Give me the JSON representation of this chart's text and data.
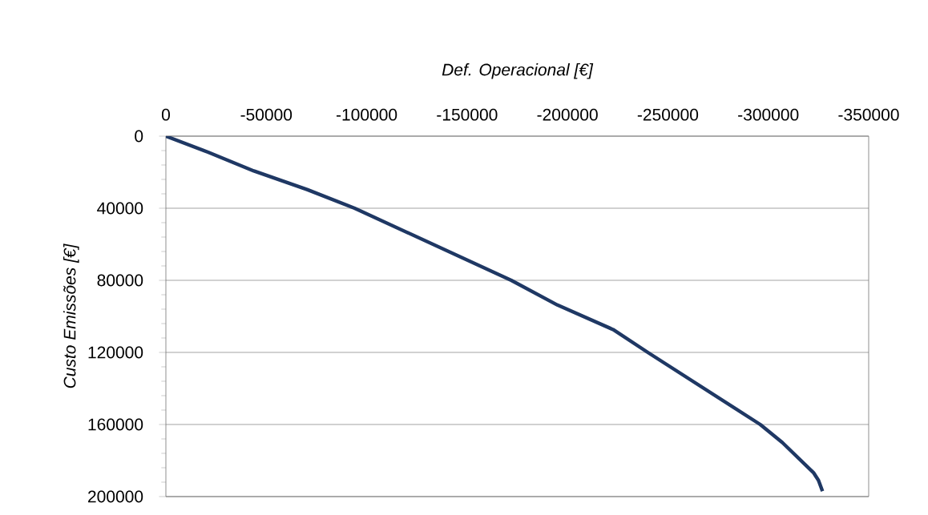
{
  "chart_data": {
    "type": "line",
    "xlabel": "Def. Operacional [€]",
    "ylabel": "Custo Emissões [€]",
    "x": [
      0,
      -21000,
      -43800,
      -70300,
      -94000,
      -172000,
      -195000,
      -222700,
      -240000,
      -296000,
      -307000,
      -322500,
      -325000,
      -327000
    ],
    "values": [
      0,
      8900,
      19300,
      29600,
      40000,
      80000,
      93700,
      107300,
      120000,
      160000,
      170000,
      186700,
      191000,
      197000
    ],
    "color": "#1f3864",
    "xlim": [
      0,
      -350000
    ],
    "xticks": [
      0,
      -50000,
      -100000,
      -150000,
      -200000,
      -250000,
      -300000,
      -350000
    ],
    "ylim": [
      200000,
      0
    ],
    "yticks": [
      0,
      40000,
      80000,
      120000,
      160000,
      200000
    ],
    "grid": "y",
    "marker": "none",
    "line_style": "solid"
  }
}
